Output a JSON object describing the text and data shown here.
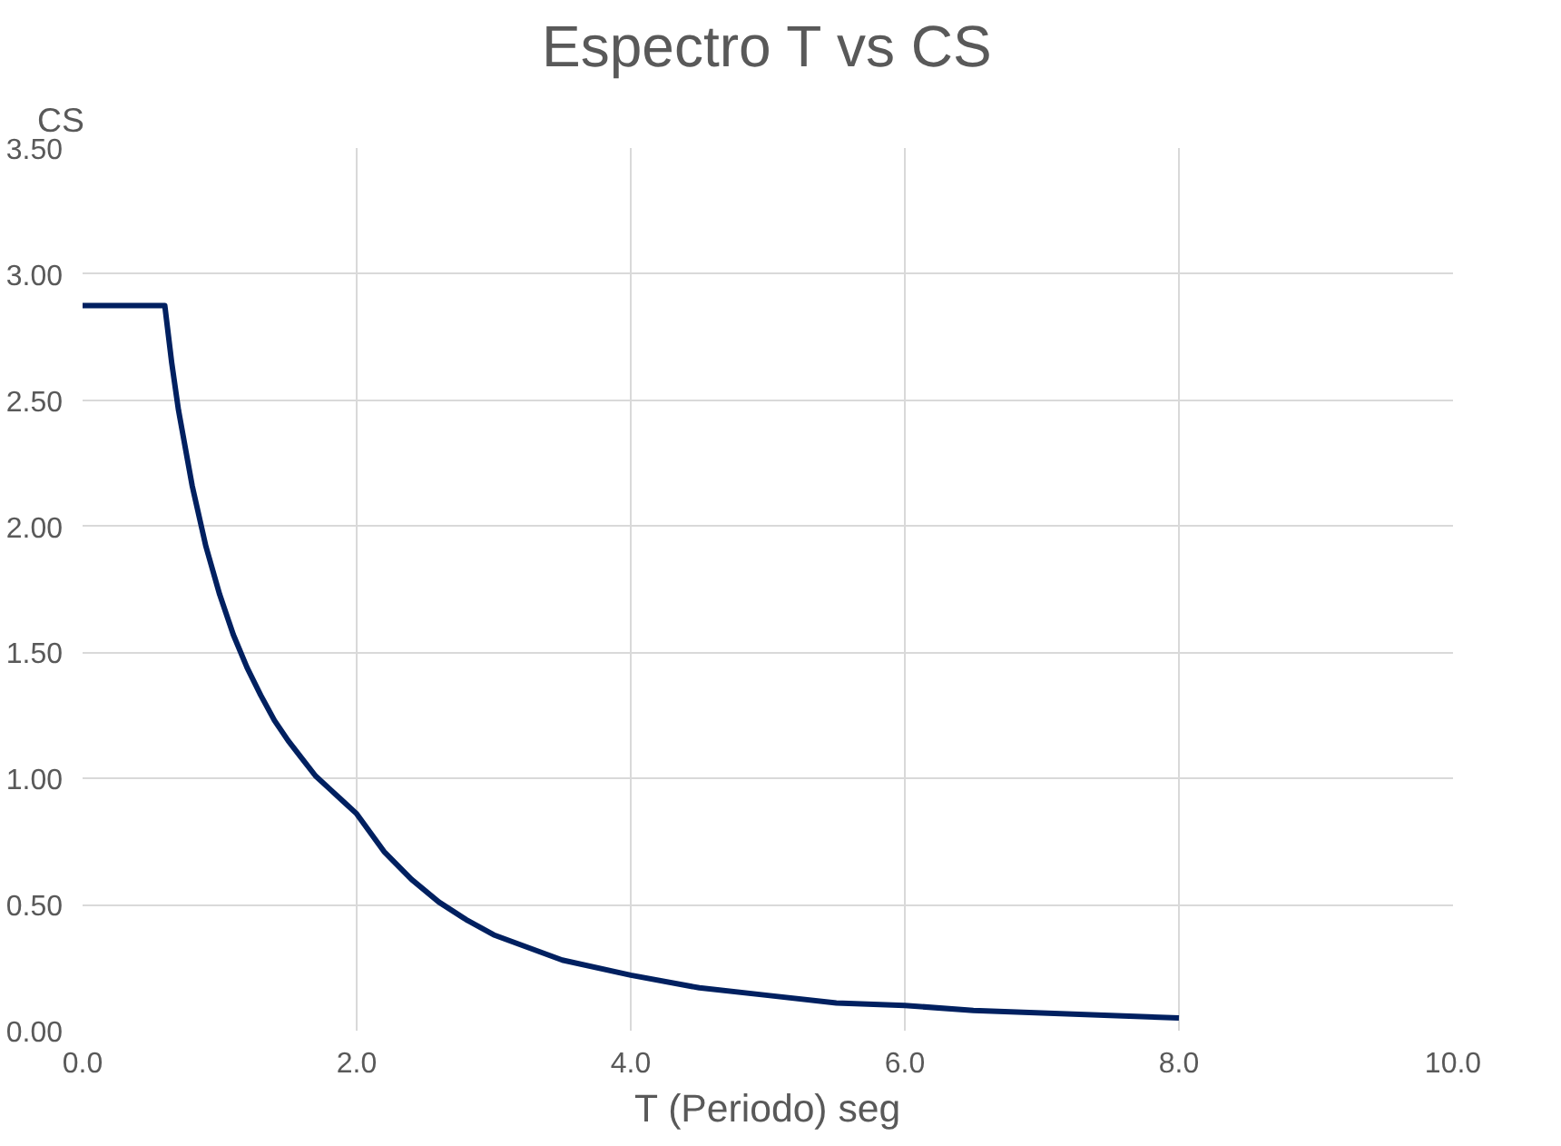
{
  "chart_data": {
    "type": "line",
    "title": "Espectro T vs CS",
    "xlabel": "T (Periodo) seg",
    "ylabel": "CS",
    "x": [
      0,
      0.1,
      0.2,
      0.3,
      0.4,
      0.5,
      0.6,
      0.65,
      0.7,
      0.8,
      0.9,
      1.0,
      1.1,
      1.2,
      1.3,
      1.4,
      1.5,
      1.6,
      1.7,
      1.8,
      1.9,
      2.0,
      2.2,
      2.4,
      2.6,
      2.8,
      3.0,
      3.5,
      4.0,
      4.5,
      5.0,
      5.5,
      6.0,
      6.5,
      7.0,
      7.5,
      8.0
    ],
    "series": [
      {
        "color": "#002060",
        "values": [
          2.875,
          2.875,
          2.875,
          2.875,
          2.875,
          2.875,
          2.875,
          2.65,
          2.46,
          2.16,
          1.92,
          1.73,
          1.57,
          1.44,
          1.33,
          1.23,
          1.15,
          1.08,
          1.01,
          0.96,
          0.91,
          0.86,
          0.71,
          0.6,
          0.51,
          0.44,
          0.38,
          0.28,
          0.22,
          0.17,
          0.14,
          0.11,
          0.1,
          0.08,
          0.07,
          0.06,
          0.05
        ]
      }
    ],
    "xlim": [
      0,
      10
    ],
    "ylim": [
      0,
      3.5
    ],
    "xticks": [
      {
        "value": 0,
        "label": "0.0"
      },
      {
        "value": 2,
        "label": "2.0"
      },
      {
        "value": 4,
        "label": "4.0"
      },
      {
        "value": 6,
        "label": "6.0"
      },
      {
        "value": 8,
        "label": "8.0"
      },
      {
        "value": 10,
        "label": "10.0"
      }
    ],
    "yticks": [
      {
        "value": 0,
        "label": "0.00"
      },
      {
        "value": 0.5,
        "label": "0.50"
      },
      {
        "value": 1,
        "label": "1.00"
      },
      {
        "value": 1.5,
        "label": "1.50"
      },
      {
        "value": 2,
        "label": "2.00"
      },
      {
        "value": 2.5,
        "label": "2.50"
      },
      {
        "value": 3,
        "label": "3.00"
      },
      {
        "value": 3.5,
        "label": "3.50"
      }
    ],
    "grid": true,
    "line_style": "solid",
    "marker": "none"
  }
}
